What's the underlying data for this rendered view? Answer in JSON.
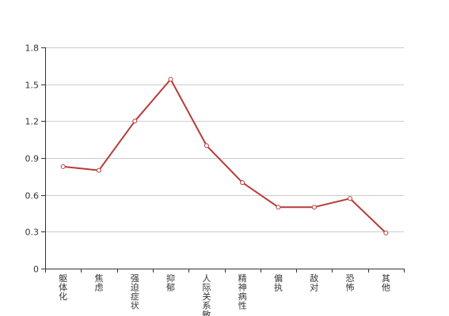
{
  "chart_data": {
    "type": "line",
    "title": "",
    "xlabel": "",
    "ylabel": "",
    "categories": [
      "躯体化",
      "焦虑",
      "强迫症状",
      "抑郁",
      "人际关系敏感",
      "精神病性",
      "偏执",
      "敌对",
      "恐怖",
      "其他"
    ],
    "series": [
      {
        "values": [
          0.83,
          0.8,
          1.2,
          1.54,
          1.0,
          0.7,
          0.5,
          0.5,
          0.57,
          0.29
        ],
        "color": "#b83b38"
      }
    ],
    "ylim": [
      0,
      1.8
    ],
    "yticks": [
      "0",
      "0.3",
      "0.6",
      "0.9",
      "1.2",
      "1.5",
      "1.8"
    ],
    "grid": true,
    "legend": "none"
  }
}
